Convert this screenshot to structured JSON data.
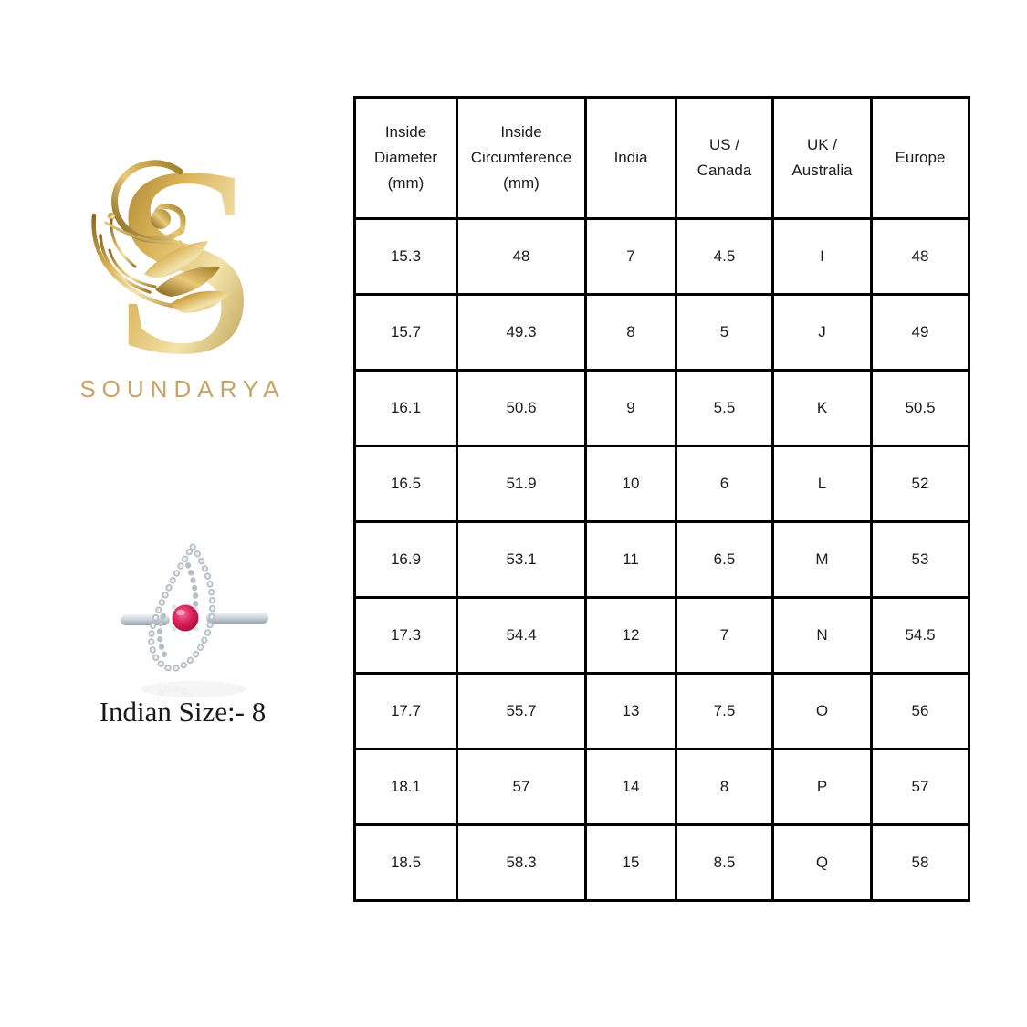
{
  "brand": {
    "name": "SOUNDARYA",
    "logo_letter": "S"
  },
  "product": {
    "size_label": "Indian Size:- 8"
  },
  "colors": {
    "gold_light": "#f3e3ab",
    "gold": "#c7a365",
    "gold_dark": "#8a671c",
    "gem_red": "#d91d55",
    "metal_silver": "#c9d0d6",
    "table_border": "#000000",
    "text": "#1c1c1c",
    "background": "#ffffff"
  },
  "chart_data": {
    "type": "table",
    "columns": [
      "Inside\nDiameter\n(mm)",
      "Inside\nCircumference\n(mm)",
      "India",
      "US /\nCanada",
      "UK /\nAustralia",
      "Europe"
    ],
    "rows": [
      [
        "15.3",
        "48",
        "7",
        "4.5",
        "I",
        "48"
      ],
      [
        "15.7",
        "49.3",
        "8",
        "5",
        "J",
        "49"
      ],
      [
        "16.1",
        "50.6",
        "9",
        "5.5",
        "K",
        "50.5"
      ],
      [
        "16.5",
        "51.9",
        "10",
        "6",
        "L",
        "52"
      ],
      [
        "16.9",
        "53.1",
        "11",
        "6.5",
        "M",
        "53"
      ],
      [
        "17.3",
        "54.4",
        "12",
        "7",
        "N",
        "54.5"
      ],
      [
        "17.7",
        "55.7",
        "13",
        "7.5",
        "O",
        "56"
      ],
      [
        "18.1",
        "57",
        "14",
        "8",
        "P",
        "57"
      ],
      [
        "18.5",
        "58.3",
        "15",
        "8.5",
        "Q",
        "58"
      ]
    ]
  }
}
